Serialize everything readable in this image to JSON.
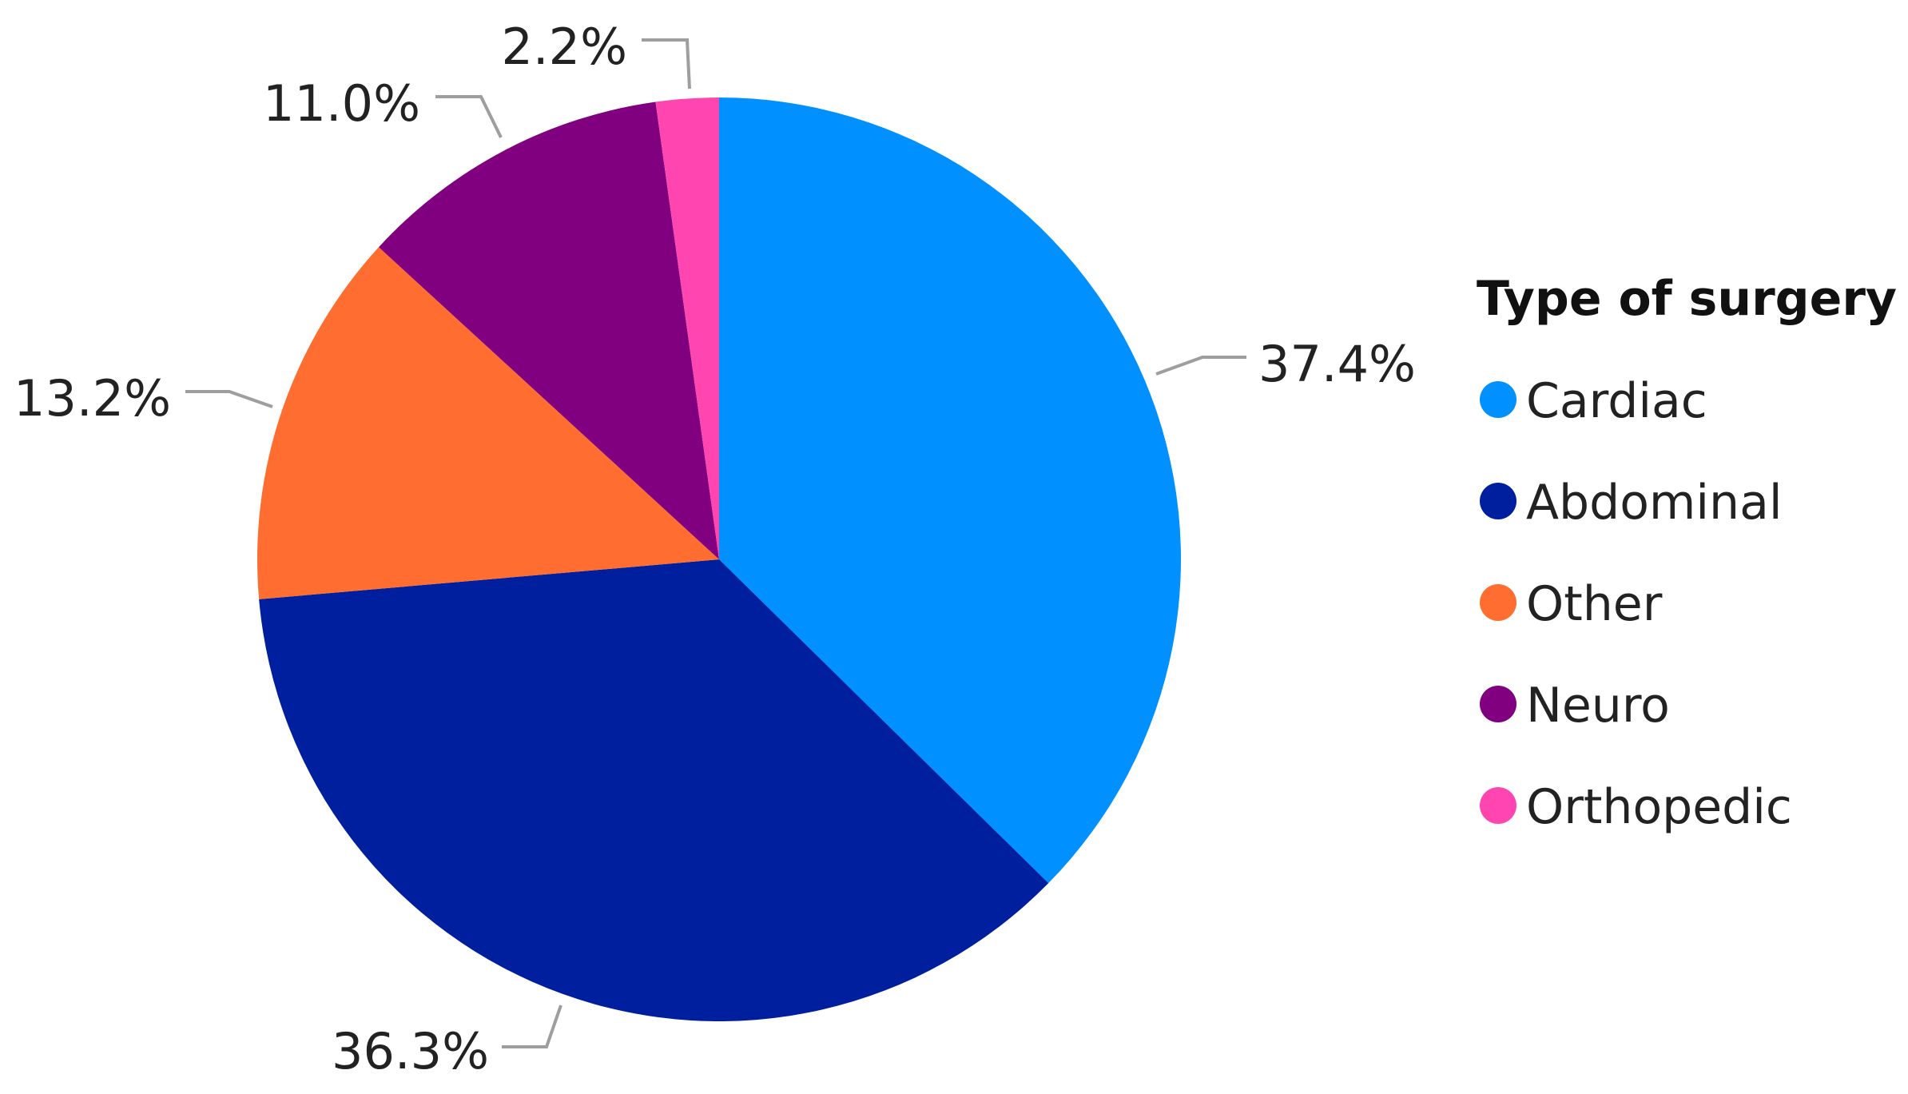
{
  "chart_data": {
    "type": "pie",
    "legend": {
      "title": "Type of surgery",
      "placement": "right"
    },
    "slices": [
      {
        "label": "Cardiac",
        "value": 37.4,
        "display": "37.4%",
        "color": "#0090FF"
      },
      {
        "label": "Abdominal",
        "value": 36.3,
        "display": "36.3%",
        "color": "#001F9F"
      },
      {
        "label": "Other",
        "value": 13.2,
        "display": "13.2%",
        "color": "#FF6E30"
      },
      {
        "label": "Neuro",
        "value": 11.0,
        "display": "11.0%",
        "color": "#800080"
      },
      {
        "label": "Orthopedic",
        "value": 2.2,
        "display": "2.2%",
        "color": "#FF45B0"
      }
    ]
  }
}
